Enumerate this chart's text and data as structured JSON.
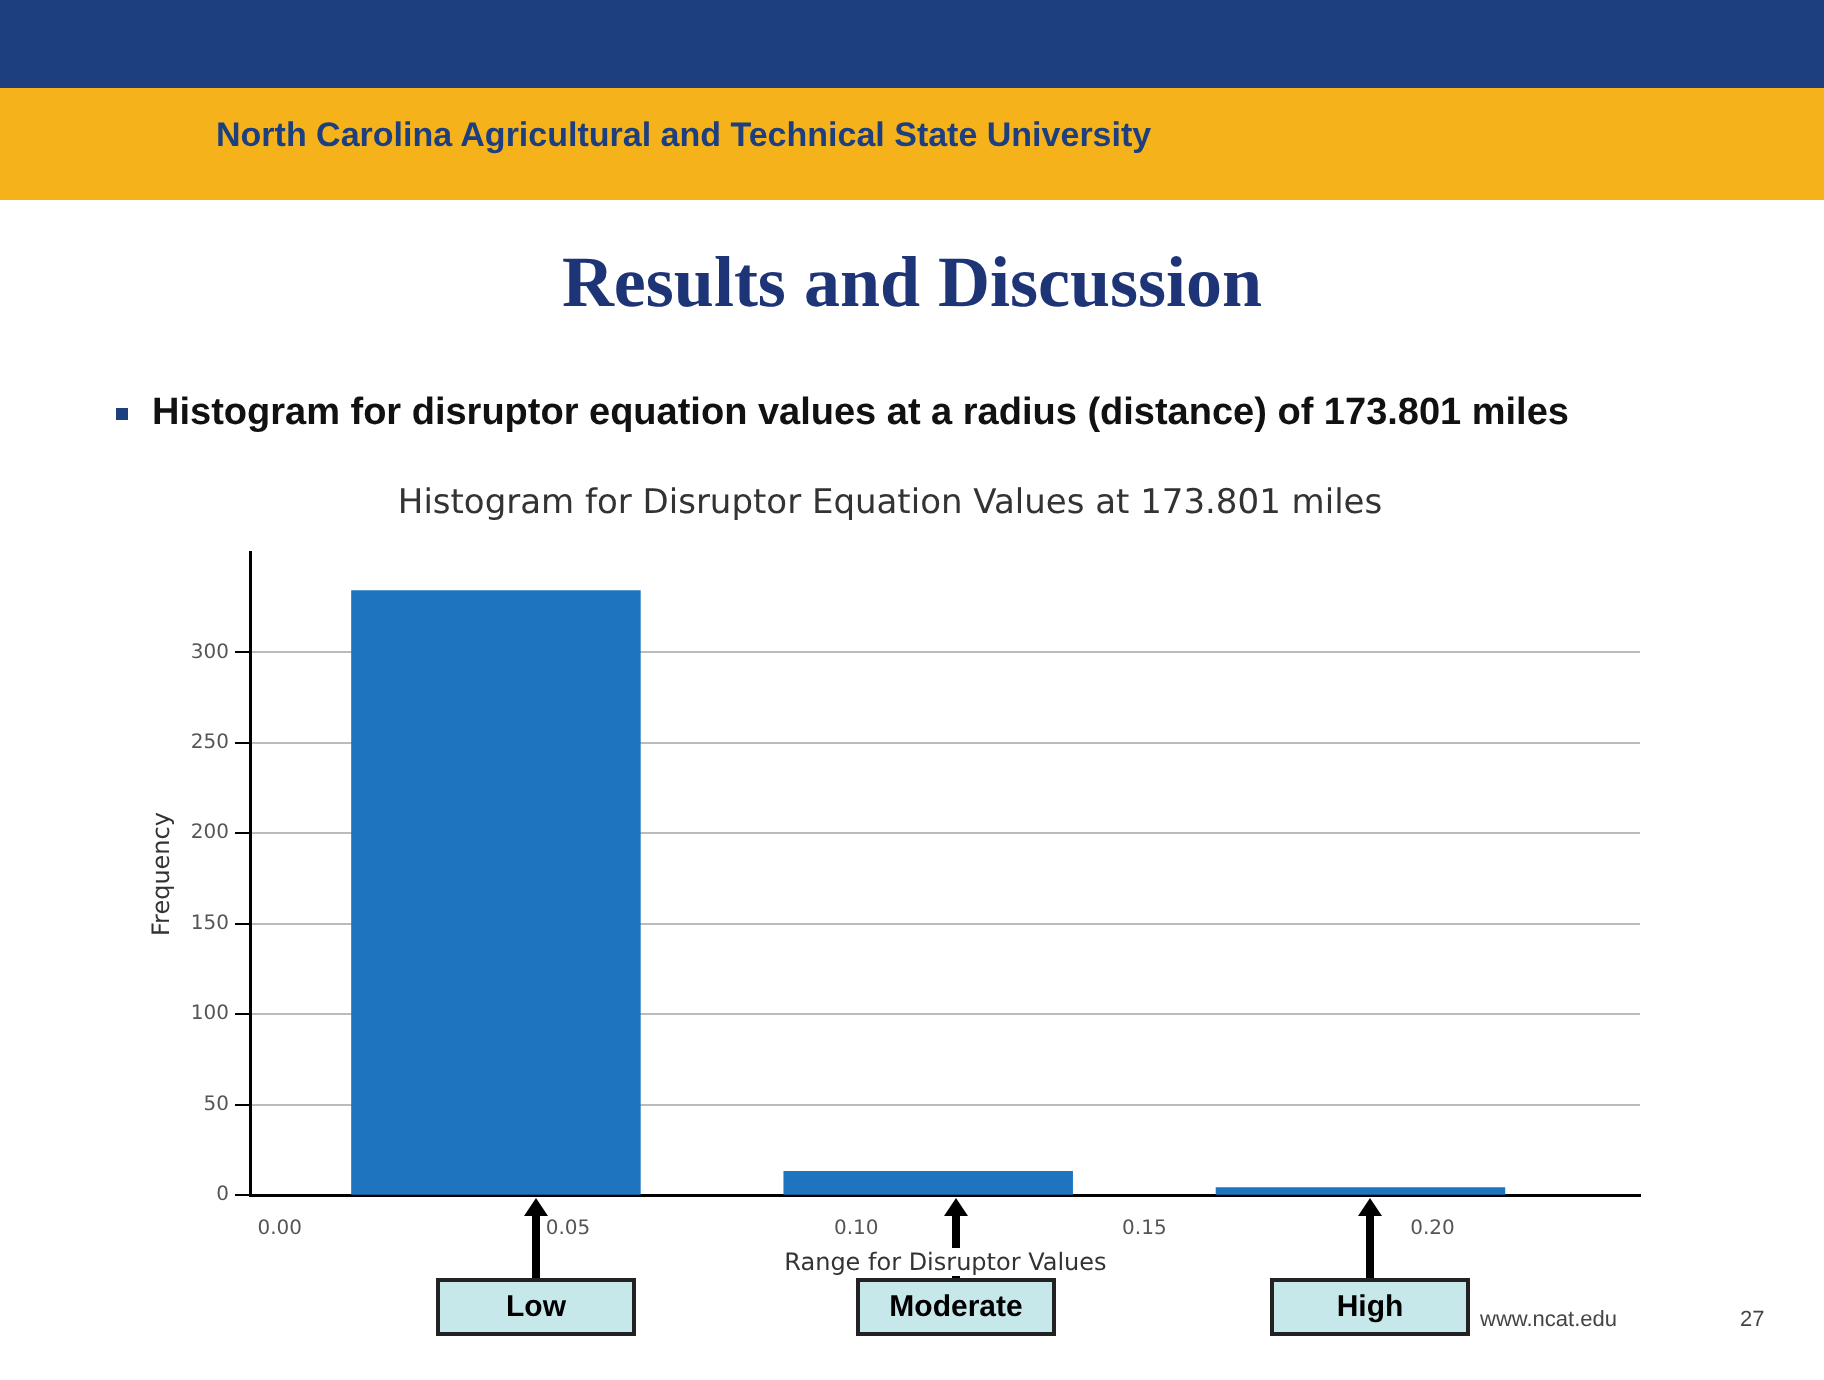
{
  "chart_data": {
    "type": "histogram",
    "title": "Results and Discussion",
    "subtitle": "Histogram for disruptor equation values at a radius (distance) of 173.801 miles",
    "xlabel": "Range for Disruptor Values",
    "ylabel": "Frequency",
    "bins": [
      0.0,
      0.075,
      0.15,
      0.225
    ],
    "values": [
      334,
      13,
      4
    ],
    "color": "#1f74c0",
    "xlim": [
      -0.005,
      0.236
    ],
    "xticks": [
      {
        "value": 0,
        "label": "0.00"
      },
      {
        "value": 0.05,
        "label": "0.05"
      },
      {
        "value": 0.1,
        "label": "0.10"
      },
      {
        "value": 0.15,
        "label": "0.15"
      },
      {
        "value": 0.2,
        "label": "0.20"
      }
    ],
    "ylim": [
      0,
      355
    ],
    "yticks": [
      0,
      50,
      100,
      150,
      200,
      250,
      300
    ],
    "grid": "y",
    "legend": false,
    "annotations": [
      "North Carolina Agricultural and Technical State University",
      "Histogram for Disruptor Equation Values at 173.801 miles",
      "Low",
      "Moderate",
      "High",
      "www.ncat.edu",
      "27"
    ]
  }
}
